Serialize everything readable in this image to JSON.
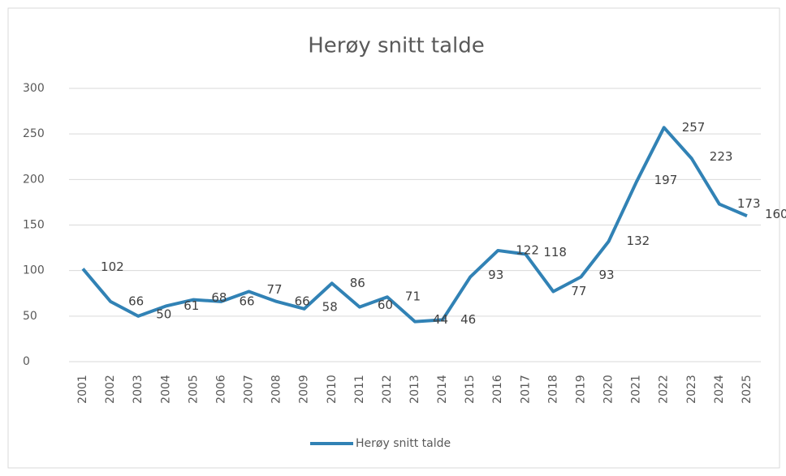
{
  "chart_data": {
    "type": "line",
    "title": "Herøy snitt talde",
    "categories": [
      "2001",
      "2002",
      "2003",
      "2004",
      "2005",
      "2006",
      "2007",
      "2008",
      "2009",
      "2010",
      "2011",
      "2012",
      "2013",
      "2014",
      "2015",
      "2016",
      "2017",
      "2018",
      "2019",
      "2020",
      "2021",
      "2022",
      "2023",
      "2024",
      "2025"
    ],
    "series": [
      {
        "name": "Herøy snitt talde",
        "color": "#3182b5",
        "values": [
          102,
          66,
          50,
          61,
          68,
          66,
          77,
          66,
          58,
          86,
          60,
          71,
          44,
          46,
          93,
          122,
          118,
          77,
          93,
          132,
          197,
          257,
          223,
          173,
          160
        ]
      }
    ],
    "ylim": [
      0,
      300
    ],
    "yticks": [
      0,
      50,
      100,
      150,
      200,
      250,
      300
    ],
    "grid": true,
    "legend": "bottom"
  }
}
